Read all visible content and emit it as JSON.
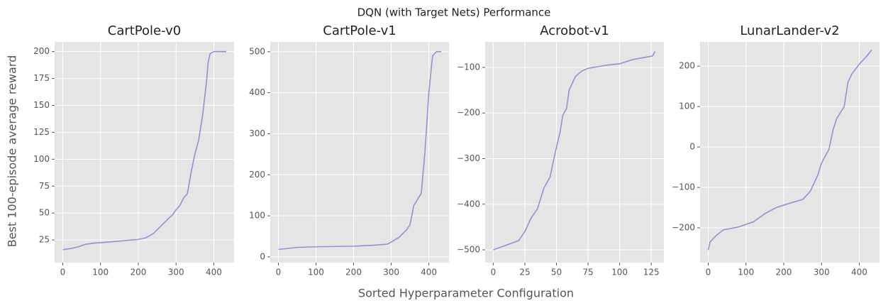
{
  "title": "DQN (with Target Nets) Performance",
  "x_label": "Sorted Hyperparameter Configuration",
  "y_label": "Best 100-episode average reward",
  "chart_data": [
    {
      "type": "line",
      "title": "CartPole-v0",
      "color": "#988ed5",
      "grid": true,
      "x": [
        0,
        20,
        40,
        60,
        80,
        100,
        150,
        200,
        220,
        240,
        260,
        280,
        290,
        300,
        310,
        320,
        330,
        340,
        350,
        360,
        370,
        380,
        385,
        390,
        400,
        433
      ],
      "values": [
        16,
        17,
        18.5,
        21,
        22,
        22.5,
        24,
        25.5,
        27,
        31,
        38,
        45,
        48,
        53,
        57,
        64,
        68,
        88,
        105,
        118,
        140,
        170,
        190,
        198,
        200,
        200
      ],
      "xlim": [
        -21.6,
        453.6
      ],
      "ylim": [
        4,
        209
      ],
      "xticks": [
        0,
        100,
        200,
        300,
        400
      ],
      "yticks": [
        25,
        50,
        75,
        100,
        125,
        150,
        175,
        200
      ]
    },
    {
      "type": "line",
      "title": "CartPole-v1",
      "color": "#988ed5",
      "grid": true,
      "x": [
        0,
        50,
        100,
        200,
        250,
        290,
        300,
        320,
        340,
        350,
        360,
        370,
        380,
        390,
        400,
        410,
        420,
        433
      ],
      "values": [
        18,
        23,
        24.5,
        26,
        28,
        31,
        36,
        47,
        65,
        78,
        125,
        140,
        155,
        260,
        400,
        490,
        500,
        500
      ],
      "xlim": [
        -21.6,
        453.6
      ],
      "ylim": [
        -14,
        524
      ],
      "xticks": [
        0,
        100,
        200,
        300,
        400
      ],
      "yticks": [
        0,
        100,
        200,
        300,
        400,
        500
      ]
    },
    {
      "type": "line",
      "title": "Acrobot-v1",
      "color": "#988ed5",
      "grid": true,
      "x": [
        0,
        10,
        20,
        25,
        30,
        35,
        40,
        45,
        48,
        50,
        53,
        55,
        58,
        60,
        65,
        70,
        75,
        90,
        100,
        110,
        120,
        126,
        128
      ],
      "values": [
        -500,
        -490,
        -480,
        -460,
        -430,
        -410,
        -365,
        -340,
        -300,
        -275,
        -240,
        -205,
        -190,
        -150,
        -120,
        -108,
        -102,
        -95,
        -92,
        -83,
        -78,
        -75,
        -65
      ],
      "xlim": [
        -6.4,
        135
      ],
      "ylim": [
        -528,
        -44
      ],
      "xticks": [
        0,
        25,
        50,
        75,
        100,
        125
      ],
      "yticks": [
        {
          "value": -500,
          "label": "−500"
        },
        {
          "value": -400,
          "label": "−400"
        },
        {
          "value": -300,
          "label": "−300"
        },
        {
          "value": -200,
          "label": "−200"
        },
        {
          "value": -100,
          "label": "−100"
        }
      ]
    },
    {
      "type": "line",
      "title": "LunarLander-v2",
      "color": "#988ed5",
      "grid": true,
      "x": [
        0,
        5,
        20,
        40,
        80,
        120,
        150,
        180,
        220,
        250,
        270,
        290,
        300,
        320,
        330,
        340,
        360,
        370,
        380,
        400,
        420,
        433
      ],
      "values": [
        -255,
        -235,
        -220,
        -205,
        -198,
        -185,
        -165,
        -150,
        -138,
        -130,
        -110,
        -70,
        -40,
        -5,
        40,
        70,
        100,
        160,
        180,
        205,
        225,
        240
      ],
      "xlim": [
        -21.6,
        453.6
      ],
      "ylim": [
        -286,
        260
      ],
      "xticks": [
        0,
        100,
        200,
        300,
        400
      ],
      "yticks": [
        {
          "value": -200,
          "label": "−200"
        },
        {
          "value": -100,
          "label": "−100"
        },
        0,
        100,
        200
      ]
    }
  ]
}
